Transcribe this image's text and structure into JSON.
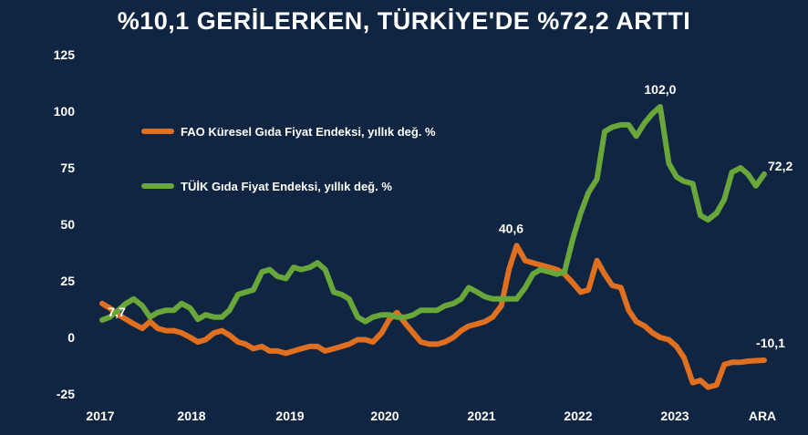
{
  "title": {
    "line1": "",
    "line2": "%10,1 GERİLERKEN, TÜRKİYE'DE %72,2 ARTTI"
  },
  "colors": {
    "background": "#0f2541",
    "fao": "#e07020",
    "tuik": "#6aa73a",
    "text": "#ffffff"
  },
  "chart_data": {
    "type": "line",
    "title": "%10,1 GERİLERKEN, TÜRKİYE'DE %72,2 ARTTI",
    "xlabel": "",
    "ylabel": "",
    "ylim": [
      -25,
      125
    ],
    "yticks": [
      125,
      100,
      75,
      50,
      25,
      0,
      -25
    ],
    "xticks": [
      "2017",
      "2018",
      "2019",
      "2020",
      "2021",
      "2022",
      "2023",
      "ARA"
    ],
    "xlim": [
      2017.0,
      2023.917
    ],
    "grid": false,
    "legend": "top-left",
    "series": [
      {
        "name": "FAO Küresel Gıda Fiyat Endeksi, yıllık değ. %",
        "color": "#e07020",
        "points": [
          [
            2017.0,
            15
          ],
          [
            2017.08,
            13
          ],
          [
            2017.17,
            10
          ],
          [
            2017.25,
            8
          ],
          [
            2017.33,
            6
          ],
          [
            2017.42,
            4
          ],
          [
            2017.5,
            7
          ],
          [
            2017.58,
            4
          ],
          [
            2017.67,
            3
          ],
          [
            2017.75,
            3
          ],
          [
            2017.83,
            2
          ],
          [
            2017.92,
            0
          ],
          [
            2018.0,
            -2
          ],
          [
            2018.08,
            -1
          ],
          [
            2018.17,
            2
          ],
          [
            2018.25,
            3
          ],
          [
            2018.33,
            1
          ],
          [
            2018.42,
            -2
          ],
          [
            2018.5,
            -3
          ],
          [
            2018.58,
            -5
          ],
          [
            2018.67,
            -4
          ],
          [
            2018.75,
            -6
          ],
          [
            2018.83,
            -6
          ],
          [
            2018.92,
            -7
          ],
          [
            2019.0,
            -6
          ],
          [
            2019.08,
            -5
          ],
          [
            2019.17,
            -4
          ],
          [
            2019.25,
            -4
          ],
          [
            2019.33,
            -6
          ],
          [
            2019.42,
            -5
          ],
          [
            2019.5,
            -4
          ],
          [
            2019.58,
            -3
          ],
          [
            2019.67,
            -1
          ],
          [
            2019.75,
            -1
          ],
          [
            2019.83,
            -2
          ],
          [
            2019.92,
            2
          ],
          [
            2020.0,
            8
          ],
          [
            2020.08,
            11
          ],
          [
            2020.17,
            6
          ],
          [
            2020.25,
            2
          ],
          [
            2020.33,
            -2
          ],
          [
            2020.42,
            -3
          ],
          [
            2020.5,
            -3
          ],
          [
            2020.58,
            -2
          ],
          [
            2020.67,
            0
          ],
          [
            2020.75,
            3
          ],
          [
            2020.83,
            5
          ],
          [
            2020.92,
            6
          ],
          [
            2021.0,
            7
          ],
          [
            2021.08,
            9
          ],
          [
            2021.17,
            14
          ],
          [
            2021.25,
            30
          ],
          [
            2021.33,
            40.6
          ],
          [
            2021.42,
            34
          ],
          [
            2021.5,
            33
          ],
          [
            2021.58,
            32
          ],
          [
            2021.67,
            31
          ],
          [
            2021.75,
            30
          ],
          [
            2021.83,
            28
          ],
          [
            2021.92,
            24
          ],
          [
            2022.0,
            20
          ],
          [
            2022.08,
            21
          ],
          [
            2022.17,
            34
          ],
          [
            2022.25,
            28
          ],
          [
            2022.33,
            23
          ],
          [
            2022.42,
            22
          ],
          [
            2022.5,
            12
          ],
          [
            2022.58,
            7
          ],
          [
            2022.67,
            5
          ],
          [
            2022.75,
            2
          ],
          [
            2022.83,
            0
          ],
          [
            2022.92,
            -1
          ],
          [
            2023.0,
            -4
          ],
          [
            2023.08,
            -9
          ],
          [
            2023.17,
            -20
          ],
          [
            2023.25,
            -19
          ],
          [
            2023.33,
            -22
          ],
          [
            2023.42,
            -21
          ],
          [
            2023.5,
            -12
          ],
          [
            2023.58,
            -11
          ],
          [
            2023.67,
            -11
          ],
          [
            2023.75,
            -10.5
          ],
          [
            2023.83,
            -10.3
          ],
          [
            2023.917,
            -10.1
          ]
        ]
      },
      {
        "name": "TÜİK Gıda Fiyat Endeksi, yıllık değ. %",
        "color": "#6aa73a",
        "points": [
          [
            2017.0,
            7.7
          ],
          [
            2017.08,
            9
          ],
          [
            2017.17,
            12
          ],
          [
            2017.25,
            15
          ],
          [
            2017.33,
            17
          ],
          [
            2017.42,
            14
          ],
          [
            2017.5,
            9
          ],
          [
            2017.58,
            11
          ],
          [
            2017.67,
            12
          ],
          [
            2017.75,
            12
          ],
          [
            2017.83,
            15
          ],
          [
            2017.92,
            13
          ],
          [
            2018.0,
            8
          ],
          [
            2018.08,
            10
          ],
          [
            2018.17,
            9
          ],
          [
            2018.25,
            9
          ],
          [
            2018.33,
            12
          ],
          [
            2018.42,
            19
          ],
          [
            2018.5,
            20
          ],
          [
            2018.58,
            21
          ],
          [
            2018.67,
            29
          ],
          [
            2018.75,
            30
          ],
          [
            2018.83,
            27
          ],
          [
            2018.92,
            26
          ],
          [
            2019.0,
            31
          ],
          [
            2019.08,
            30
          ],
          [
            2019.17,
            31
          ],
          [
            2019.25,
            33
          ],
          [
            2019.33,
            30
          ],
          [
            2019.42,
            20
          ],
          [
            2019.5,
            19
          ],
          [
            2019.58,
            17
          ],
          [
            2019.67,
            9
          ],
          [
            2019.75,
            7
          ],
          [
            2019.83,
            9
          ],
          [
            2019.92,
            10
          ],
          [
            2020.0,
            10
          ],
          [
            2020.08,
            9
          ],
          [
            2020.17,
            9
          ],
          [
            2020.25,
            10
          ],
          [
            2020.33,
            12
          ],
          [
            2020.42,
            12
          ],
          [
            2020.5,
            12
          ],
          [
            2020.58,
            14
          ],
          [
            2020.67,
            15
          ],
          [
            2020.75,
            17
          ],
          [
            2020.83,
            22
          ],
          [
            2020.92,
            20
          ],
          [
            2021.0,
            18
          ],
          [
            2021.08,
            17
          ],
          [
            2021.17,
            17
          ],
          [
            2021.25,
            17
          ],
          [
            2021.33,
            17
          ],
          [
            2021.42,
            22
          ],
          [
            2021.5,
            28
          ],
          [
            2021.58,
            30
          ],
          [
            2021.67,
            29
          ],
          [
            2021.75,
            28
          ],
          [
            2021.83,
            29
          ],
          [
            2021.92,
            44
          ],
          [
            2022.0,
            55
          ],
          [
            2022.08,
            64
          ],
          [
            2022.17,
            70
          ],
          [
            2022.25,
            91
          ],
          [
            2022.33,
            93
          ],
          [
            2022.42,
            94
          ],
          [
            2022.5,
            94
          ],
          [
            2022.58,
            89
          ],
          [
            2022.67,
            95
          ],
          [
            2022.75,
            99
          ],
          [
            2022.83,
            102.0
          ],
          [
            2022.92,
            77
          ],
          [
            2023.0,
            71
          ],
          [
            2023.08,
            69
          ],
          [
            2023.17,
            68
          ],
          [
            2023.25,
            54
          ],
          [
            2023.33,
            52
          ],
          [
            2023.42,
            55
          ],
          [
            2023.5,
            61
          ],
          [
            2023.58,
            73
          ],
          [
            2023.67,
            75
          ],
          [
            2023.75,
            72
          ],
          [
            2023.83,
            67
          ],
          [
            2023.917,
            72.2
          ]
        ]
      }
    ],
    "annotations": [
      {
        "text": "102,0",
        "series": 1,
        "x": 2022.83,
        "y": 102.0
      },
      {
        "text": "72,2",
        "series": 1,
        "x": 2023.917,
        "y": 72.2
      },
      {
        "text": "40,6",
        "series": 0,
        "x": 2021.33,
        "y": 40.6
      },
      {
        "text": "7,7",
        "series": 1,
        "x": 2017.0,
        "y": 7.7
      },
      {
        "text": "-10,1",
        "series": 0,
        "x": 2023.917,
        "y": -10.1
      }
    ]
  }
}
